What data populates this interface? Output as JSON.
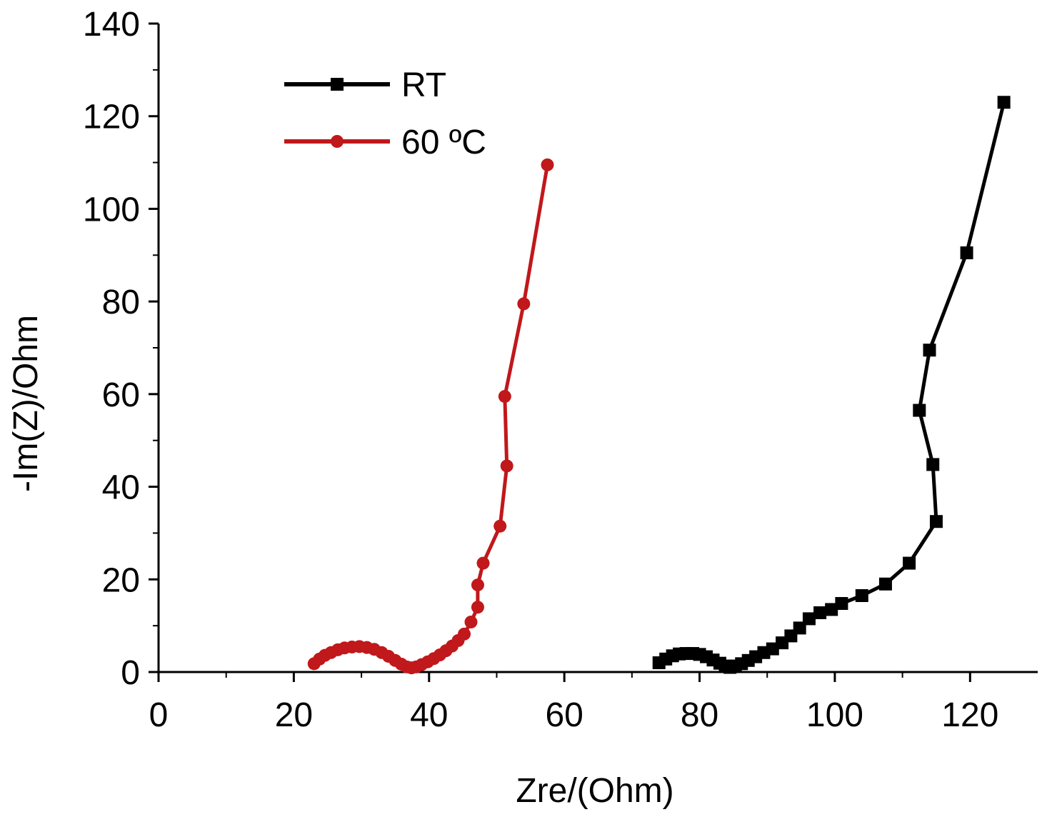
{
  "chart_data": {
    "type": "line",
    "xlabel": "Zre/(Ohm)",
    "ylabel": "-Im(Z)/Ohm",
    "xlim": [
      0,
      130
    ],
    "ylim": [
      0,
      140
    ],
    "x_ticks": [
      "0",
      "20",
      "40",
      "60",
      "80",
      "100",
      "120"
    ],
    "y_ticks": [
      "0",
      "20",
      "40",
      "60",
      "80",
      "100",
      "120",
      "140"
    ],
    "grid": false,
    "legend_position": "top-left",
    "series": [
      {
        "name": "RT",
        "color": "#000000",
        "marker": "square",
        "points": [
          [
            74.0,
            2.0
          ],
          [
            75.0,
            2.8
          ],
          [
            76.0,
            3.5
          ],
          [
            77.0,
            3.9
          ],
          [
            78.0,
            4.0
          ],
          [
            79.0,
            4.0
          ],
          [
            80.0,
            3.8
          ],
          [
            81.0,
            3.3
          ],
          [
            82.0,
            2.6
          ],
          [
            83.0,
            1.9
          ],
          [
            83.8,
            1.3
          ],
          [
            84.5,
            1.0
          ],
          [
            85.3,
            1.3
          ],
          [
            86.2,
            1.8
          ],
          [
            87.2,
            2.5
          ],
          [
            88.3,
            3.3
          ],
          [
            89.5,
            4.2
          ],
          [
            90.8,
            5.0
          ],
          [
            92.2,
            6.3
          ],
          [
            93.5,
            7.8
          ],
          [
            94.8,
            9.5
          ],
          [
            96.2,
            11.5
          ],
          [
            97.8,
            12.8
          ],
          [
            99.5,
            13.5
          ],
          [
            101.0,
            14.8
          ],
          [
            104.0,
            16.5
          ],
          [
            107.5,
            19.0
          ],
          [
            111.0,
            23.5
          ],
          [
            115.0,
            32.5
          ],
          [
            114.5,
            44.8
          ],
          [
            112.5,
            56.5
          ],
          [
            114.0,
            69.5
          ],
          [
            119.5,
            90.5
          ],
          [
            125.0,
            123.0
          ]
        ]
      },
      {
        "name": "60 ºC",
        "color": "#c0181b",
        "marker": "circle",
        "points": [
          [
            23.0,
            1.8
          ],
          [
            23.8,
            2.8
          ],
          [
            24.6,
            3.6
          ],
          [
            25.5,
            4.2
          ],
          [
            26.5,
            4.8
          ],
          [
            27.5,
            5.2
          ],
          [
            28.6,
            5.4
          ],
          [
            29.7,
            5.5
          ],
          [
            30.8,
            5.3
          ],
          [
            31.9,
            4.9
          ],
          [
            33.0,
            4.2
          ],
          [
            34.0,
            3.4
          ],
          [
            35.0,
            2.5
          ],
          [
            35.9,
            1.7
          ],
          [
            36.7,
            1.1
          ],
          [
            37.4,
            0.9
          ],
          [
            38.1,
            1.1
          ],
          [
            38.9,
            1.6
          ],
          [
            39.8,
            2.2
          ],
          [
            40.7,
            2.9
          ],
          [
            41.6,
            3.7
          ],
          [
            42.5,
            4.6
          ],
          [
            43.4,
            5.6
          ],
          [
            44.3,
            6.8
          ],
          [
            45.2,
            8.2
          ],
          [
            46.2,
            10.8
          ],
          [
            47.2,
            14.0
          ],
          [
            47.2,
            18.8
          ],
          [
            48.0,
            23.5
          ],
          [
            50.5,
            31.5
          ],
          [
            51.5,
            44.5
          ],
          [
            51.2,
            59.5
          ],
          [
            54.0,
            79.5
          ],
          [
            57.5,
            109.5
          ]
        ]
      }
    ]
  }
}
